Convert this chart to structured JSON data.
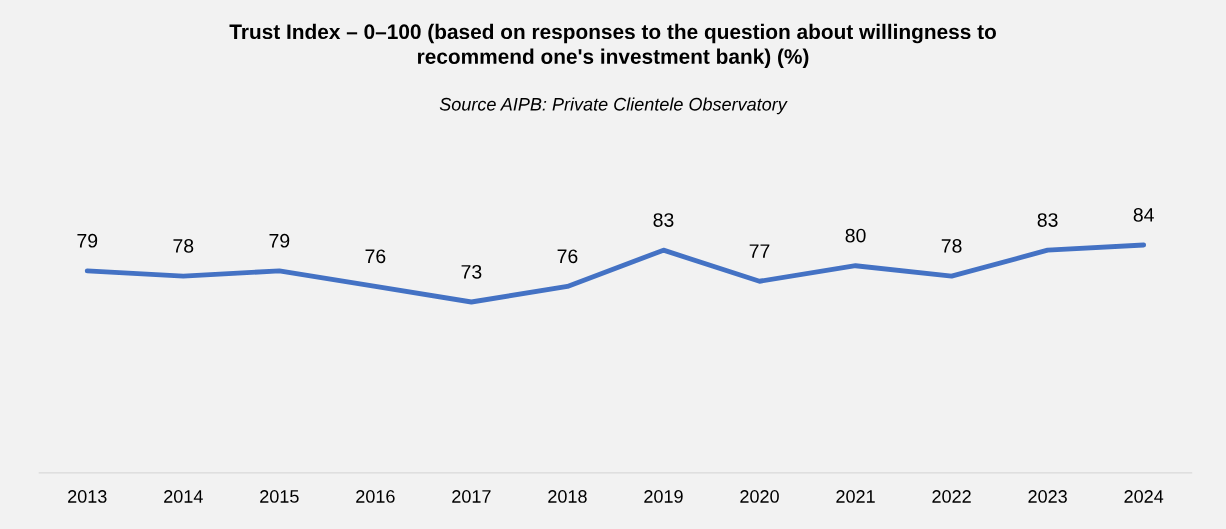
{
  "chart_data": {
    "type": "line",
    "title": "Trust Index – 0–100 (based on responses to the question about willingness to\nrecommend one's investment bank) (%)",
    "annotations": [
      "Source AIPB: Private Clientele Observatory"
    ],
    "categories": [
      "2013",
      "2014",
      "2015",
      "2016",
      "2017",
      "2018",
      "2019",
      "2020",
      "2021",
      "2022",
      "2023",
      "2024"
    ],
    "series": [
      {
        "color": "#4472c4",
        "values": [
          79,
          78,
          79,
          76,
          73,
          76,
          83,
          77,
          80,
          78,
          83,
          84
        ]
      }
    ],
    "tick_labels": "x",
    "data_labels": true,
    "grid": false,
    "legend": false,
    "marker": "none",
    "line_style": "solid"
  }
}
